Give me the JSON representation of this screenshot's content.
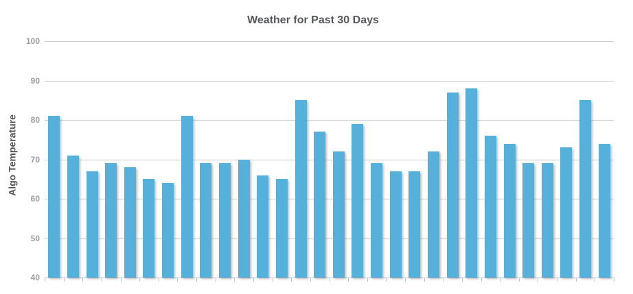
{
  "chart_data": {
    "type": "bar",
    "title": "Weather for Past 30 Days",
    "xlabel": "",
    "ylabel": "Algo Temperature",
    "values": [
      81,
      71,
      67,
      69,
      68,
      65,
      64,
      81,
      69,
      69,
      70,
      66,
      65,
      85,
      77,
      72,
      79,
      69,
      67,
      67,
      72,
      87,
      88,
      76,
      74,
      69,
      69,
      73,
      85,
      74
    ],
    "ylim": [
      40,
      100
    ],
    "yticks": [
      100,
      90,
      80,
      70,
      60,
      50,
      40
    ],
    "grid": true,
    "legend": "none",
    "colors": {
      "bar": "#55b1d9",
      "gridline": "#cccccc",
      "axis": "#b3c3d6",
      "tick_label": "#9b9ca1",
      "title": "#55575c",
      "ylabel": "#54565a"
    }
  }
}
